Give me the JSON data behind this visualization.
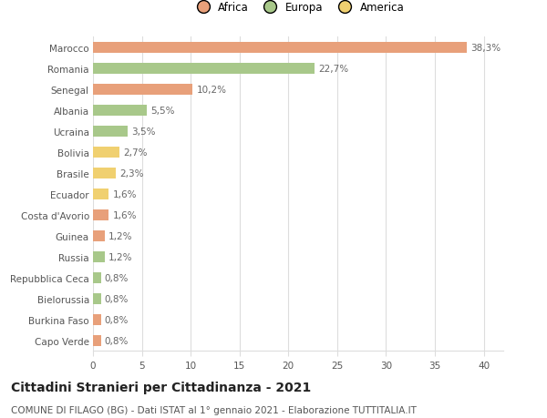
{
  "categories": [
    "Capo Verde",
    "Burkina Faso",
    "Bielorussia",
    "Repubblica Ceca",
    "Russia",
    "Guinea",
    "Costa d'Avorio",
    "Ecuador",
    "Brasile",
    "Bolivia",
    "Ucraina",
    "Albania",
    "Senegal",
    "Romania",
    "Marocco"
  ],
  "values": [
    0.8,
    0.8,
    0.8,
    0.8,
    1.2,
    1.2,
    1.6,
    1.6,
    2.3,
    2.7,
    3.5,
    5.5,
    10.2,
    22.7,
    38.3
  ],
  "labels": [
    "0,8%",
    "0,8%",
    "0,8%",
    "0,8%",
    "1,2%",
    "1,2%",
    "1,6%",
    "1,6%",
    "2,3%",
    "2,7%",
    "3,5%",
    "5,5%",
    "10,2%",
    "22,7%",
    "38,3%"
  ],
  "colors": [
    "#e8a07a",
    "#e8a07a",
    "#a8c88a",
    "#a8c88a",
    "#a8c88a",
    "#e8a07a",
    "#e8a07a",
    "#f0d070",
    "#f0d070",
    "#f0d070",
    "#a8c88a",
    "#a8c88a",
    "#e8a07a",
    "#a8c88a",
    "#e8a07a"
  ],
  "legend_labels": [
    "Africa",
    "Europa",
    "America"
  ],
  "legend_colors": [
    "#e8a07a",
    "#a8c88a",
    "#f0d070"
  ],
  "title": "Cittadini Stranieri per Cittadinanza - 2021",
  "subtitle": "COMUNE DI FILAGO (BG) - Dati ISTAT al 1° gennaio 2021 - Elaborazione TUTTITALIA.IT",
  "xlim": [
    0,
    42
  ],
  "xticks": [
    0,
    5,
    10,
    15,
    20,
    25,
    30,
    35,
    40
  ],
  "background_color": "#ffffff",
  "grid_color": "#dddddd",
  "bar_height": 0.55,
  "label_fontsize": 7.5,
  "ytick_fontsize": 7.5,
  "xtick_fontsize": 7.5,
  "title_fontsize": 10,
  "subtitle_fontsize": 7.5
}
